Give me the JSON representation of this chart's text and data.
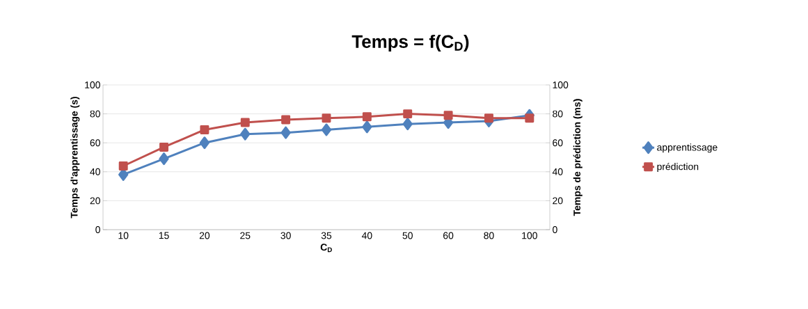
{
  "chart_data": {
    "type": "line",
    "title": "Temps = f(C$_{D}$)",
    "xlabel": "C$_{D}$",
    "ylabel": "Temps d'apprentissage (s)",
    "y2label": "Temps de prédiction (ms)",
    "categories": [
      "10",
      "15",
      "20",
      "25",
      "30",
      "35",
      "40",
      "50",
      "60",
      "80",
      "100"
    ],
    "series": [
      {
        "name": "apprentissage",
        "color": "#4f81bd",
        "marker": "diamond",
        "values": [
          38,
          49,
          60,
          66,
          67,
          69,
          71,
          73,
          74,
          75,
          79
        ]
      },
      {
        "name": "prédiction",
        "color": "#c0504d",
        "marker": "square",
        "axis": "y2",
        "values": [
          44,
          57,
          69,
          74,
          76,
          77,
          78,
          80,
          79,
          77,
          77
        ]
      }
    ],
    "ylim": [
      0,
      100
    ],
    "yticks": [
      0,
      20,
      40,
      60,
      80,
      100
    ],
    "y2lim": [
      0,
      100
    ],
    "y2ticks": [
      0,
      20,
      40,
      60,
      80,
      100
    ],
    "grid": "y",
    "legend": "right"
  }
}
